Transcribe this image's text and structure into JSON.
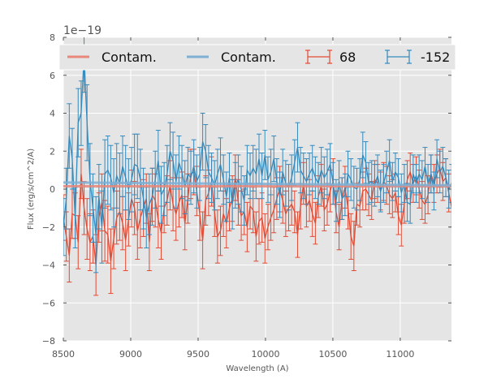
{
  "chart_data": {
    "type": "line",
    "title": "",
    "xlabel": "Wavelength (A)",
    "ylabel": "Flux (erg/s/cm^2/A)",
    "y_offset_label": "1e−19",
    "xlim": [
      8500,
      11380
    ],
    "ylim": [
      -8,
      8
    ],
    "x_ticks": [
      8500,
      9000,
      9500,
      10000,
      10500,
      11000
    ],
    "x_tick_labels": [
      "8500",
      "9000",
      "9500",
      "10000",
      "10500",
      "11000"
    ],
    "y_ticks": [
      -8,
      -6,
      -4,
      -2,
      0,
      2,
      4,
      6,
      8
    ],
    "y_tick_labels": [
      "−8",
      "−6",
      "−4",
      "−2",
      "0",
      "2",
      "4",
      "6",
      "8"
    ],
    "grid": true,
    "legend_position": "top",
    "colors": {
      "red": "#E24A33",
      "blue": "#348ABD",
      "red_contam": "#E8877A",
      "blue_contam": "#7FAFD3",
      "axes_bg": "#E5E5E5",
      "grid": "#FFFFFF"
    },
    "x_start": 8500,
    "x_step": 22,
    "series": [
      {
        "name": "Contam.",
        "kind": "contam",
        "color_key": "red_contam",
        "x": [
          8500,
          11380
        ],
        "y": [
          0.15,
          0.15
        ]
      },
      {
        "name": "Contam.",
        "kind": "contam",
        "color_key": "blue_contam",
        "x": [
          8500,
          11380
        ],
        "y": [
          0.35,
          0.2
        ]
      },
      {
        "name": "68",
        "kind": "errorbar",
        "color_key": "red",
        "y": [
          -1.5,
          -2.5,
          -3.5,
          -1.3,
          -1.4,
          -2.8,
          0.8,
          -1.0,
          -2.1,
          -2.8,
          -2.5,
          -4.0,
          -1.5,
          -0.7,
          -2.2,
          -2.4,
          -3.8,
          -2.6,
          -1.5,
          -1.2,
          -1.8,
          -2.7,
          -1.6,
          -0.5,
          -1.0,
          -2.2,
          -1.5,
          -1.0,
          -0.5,
          -2.8,
          -0.3,
          -0.6,
          -1.6,
          -2.3,
          -1.0,
          -0.6,
          0.2,
          -0.8,
          -1.3,
          -0.7,
          -0.3,
          -1.8,
          -0.5,
          0.8,
          0.9,
          -0.1,
          -1.3,
          -2.7,
          -0.6,
          -0.2,
          0.4,
          -1.2,
          -2.5,
          -2.2,
          -1.3,
          -1.8,
          -1.0,
          -0.5,
          0.6,
          -0.7,
          -1.4,
          -1.2,
          -2.0,
          -0.9,
          -1.1,
          -2.5,
          -1.7,
          -1.5,
          -2.6,
          -2.0,
          -1.5,
          -1.1,
          -0.5,
          0.0,
          -0.6,
          -1.3,
          -1.0,
          -0.8,
          -1.2,
          -2.4,
          -0.9,
          0.3,
          -0.9,
          -0.6,
          -1.3,
          -1.8,
          -0.4,
          0.2,
          -1.1,
          -0.8,
          -0.1,
          0.4,
          -1.2,
          -2.0,
          -0.5,
          0.1,
          -1.0,
          -2.5,
          -3.0,
          -0.8,
          -0.9,
          -0.1,
          0.0,
          -0.3,
          -0.6,
          0.5,
          0.3,
          -0.1,
          0.4,
          0.2,
          -0.3,
          -0.5,
          -0.2,
          -1.4,
          -1.9,
          -0.8,
          0.5,
          0.9,
          0.3,
          0.7,
          0.0,
          -0.6,
          -0.8,
          -0.3,
          0.8,
          0.3,
          0.8,
          1.1,
          0.4,
          0.6,
          -0.2,
          -1.0,
          0.5,
          1.7
        ],
        "err": [
          1.2,
          1.3,
          1.4,
          1.3,
          1.2,
          1.4,
          1.3,
          1.4,
          1.6,
          1.5,
          1.4,
          1.6,
          1.3,
          1.5,
          1.6,
          1.5,
          1.7,
          1.6,
          1.4,
          1.5,
          1.4,
          1.6,
          1.4,
          1.5,
          1.4,
          1.5,
          1.6,
          1.5,
          1.3,
          1.5,
          1.4,
          1.4,
          1.5,
          1.4,
          1.3,
          1.3,
          1.3,
          1.4,
          1.4,
          1.3,
          1.2,
          1.4,
          1.3,
          1.3,
          1.2,
          1.3,
          1.4,
          1.5,
          1.3,
          1.2,
          1.3,
          1.3,
          1.4,
          1.3,
          1.2,
          1.3,
          1.2,
          1.2,
          1.2,
          1.2,
          1.3,
          1.2,
          1.3,
          1.2,
          1.2,
          1.3,
          1.2,
          1.3,
          1.3,
          1.2,
          1.2,
          1.2,
          1.1,
          1.2,
          1.2,
          1.2,
          1.2,
          1.1,
          1.1,
          1.2,
          1.2,
          1.1,
          1.1,
          1.1,
          1.2,
          1.1,
          1.1,
          1.1,
          1.1,
          1.1,
          1.1,
          1.2,
          1.1,
          1.2,
          1.1,
          1.1,
          1.1,
          1.2,
          1.3,
          1.1,
          1.1,
          1.0,
          1.1,
          1.1,
          1.0,
          1.0,
          1.0,
          1.0,
          1.0,
          1.0,
          1.0,
          1.0,
          1.0,
          1.0,
          1.1,
          1.0,
          1.0,
          1.0,
          1.0,
          1.0,
          1.0,
          1.0,
          1.0,
          1.0,
          1.0,
          1.0,
          1.0,
          1.0,
          1.0,
          1.0,
          1.0,
          1.0,
          1.0,
          1.0
        ]
      },
      {
        "name": "-152",
        "kind": "errorbar",
        "color_key": "blue",
        "y": [
          -2.0,
          -0.5,
          2.8,
          1.6,
          -1.5,
          3.5,
          4.0,
          7.0,
          3.5,
          0.5,
          -1.0,
          -2.4,
          -0.4,
          -2.0,
          0.8,
          1.0,
          0.6,
          -0.2,
          0.7,
          0.3,
          1.2,
          0.6,
          0.0,
          0.5,
          1.3,
          1.2,
          0.5,
          -0.5,
          -1.5,
          -0.8,
          -0.4,
          0.5,
          1.5,
          -0.3,
          0.0,
          0.8,
          2.0,
          1.5,
          0.4,
          1.4,
          0.9,
          0.1,
          0.8,
          0.6,
          1.2,
          0.4,
          0.8,
          2.5,
          2.0,
          0.9,
          0.6,
          0.2,
          0.8,
          1.3,
          0.5,
          -0.4,
          0.6,
          -0.8,
          0.2,
          0.5,
          0.0,
          -0.6,
          1.0,
          0.7,
          1.1,
          0.8,
          1.6,
          0.7,
          1.8,
          0.5,
          0.9,
          1.6,
          0.4,
          -0.3,
          0.9,
          0.3,
          0.1,
          0.6,
          1.4,
          2.2,
          1.0,
          0.7,
          0.4,
          0.8,
          1.1,
          0.6,
          0.3,
          1.0,
          0.6,
          0.9,
          1.3,
          0.3,
          -0.6,
          0.4,
          -0.5,
          -0.3,
          0.8,
          0.5,
          0.1,
          0.0,
          0.5,
          1.8,
          1.4,
          0.3,
          0.4,
          0.2,
          0.7,
          -0.1,
          0.3,
          0.9,
          1.5,
          0.4,
          0.9,
          0.6,
          -0.2,
          0.3,
          -0.7,
          -0.8,
          0.8,
          0.3,
          0.8,
          0.5,
          1.2,
          0.3,
          0.8,
          -0.1,
          1.6,
          0.9,
          1.2,
          0.6,
          0.0,
          0.3,
          1.3,
          0.7,
          1.5
        ],
        "err": [
          1.5,
          1.6,
          1.7,
          1.6,
          1.6,
          1.8,
          1.7,
          1.9,
          2.0,
          1.9,
          1.8,
          2.0,
          1.7,
          1.9,
          1.8,
          1.8,
          1.7,
          1.8,
          1.7,
          1.6,
          1.6,
          1.7,
          1.6,
          1.7,
          1.6,
          1.7,
          1.6,
          1.6,
          1.6,
          1.6,
          1.5,
          1.5,
          1.6,
          1.5,
          1.4,
          1.5,
          1.5,
          1.5,
          1.4,
          1.4,
          1.4,
          1.4,
          1.4,
          1.4,
          1.4,
          1.4,
          1.4,
          1.5,
          1.4,
          1.4,
          1.3,
          1.3,
          1.3,
          1.4,
          1.3,
          1.3,
          1.3,
          1.3,
          1.2,
          1.3,
          1.2,
          1.3,
          1.3,
          1.2,
          1.2,
          1.3,
          1.3,
          1.2,
          1.3,
          1.2,
          1.2,
          1.2,
          1.2,
          1.2,
          1.2,
          1.2,
          1.2,
          1.2,
          1.2,
          1.3,
          1.2,
          1.2,
          1.2,
          1.1,
          1.2,
          1.1,
          1.1,
          1.2,
          1.1,
          1.2,
          1.1,
          1.1,
          1.1,
          1.1,
          1.1,
          1.1,
          1.2,
          1.1,
          1.1,
          1.1,
          1.1,
          1.2,
          1.1,
          1.1,
          1.1,
          1.1,
          1.1,
          1.1,
          1.0,
          1.1,
          1.1,
          1.0,
          1.0,
          1.0,
          1.0,
          1.0,
          1.0,
          1.0,
          1.0,
          1.0,
          1.0,
          1.0,
          1.0,
          1.0,
          1.0,
          1.0,
          1.0,
          1.1,
          1.0,
          1.0,
          1.0,
          1.0,
          1.0,
          1.0,
          1.0
        ]
      }
    ],
    "legend": [
      {
        "label": "Contam.",
        "marker": "line",
        "color_key": "red_contam"
      },
      {
        "label": "Contam.",
        "marker": "line",
        "color_key": "blue_contam"
      },
      {
        "label": "68",
        "marker": "errorbar",
        "color_key": "red"
      },
      {
        "label": "-152",
        "marker": "errorbar",
        "color_key": "blue"
      }
    ]
  }
}
